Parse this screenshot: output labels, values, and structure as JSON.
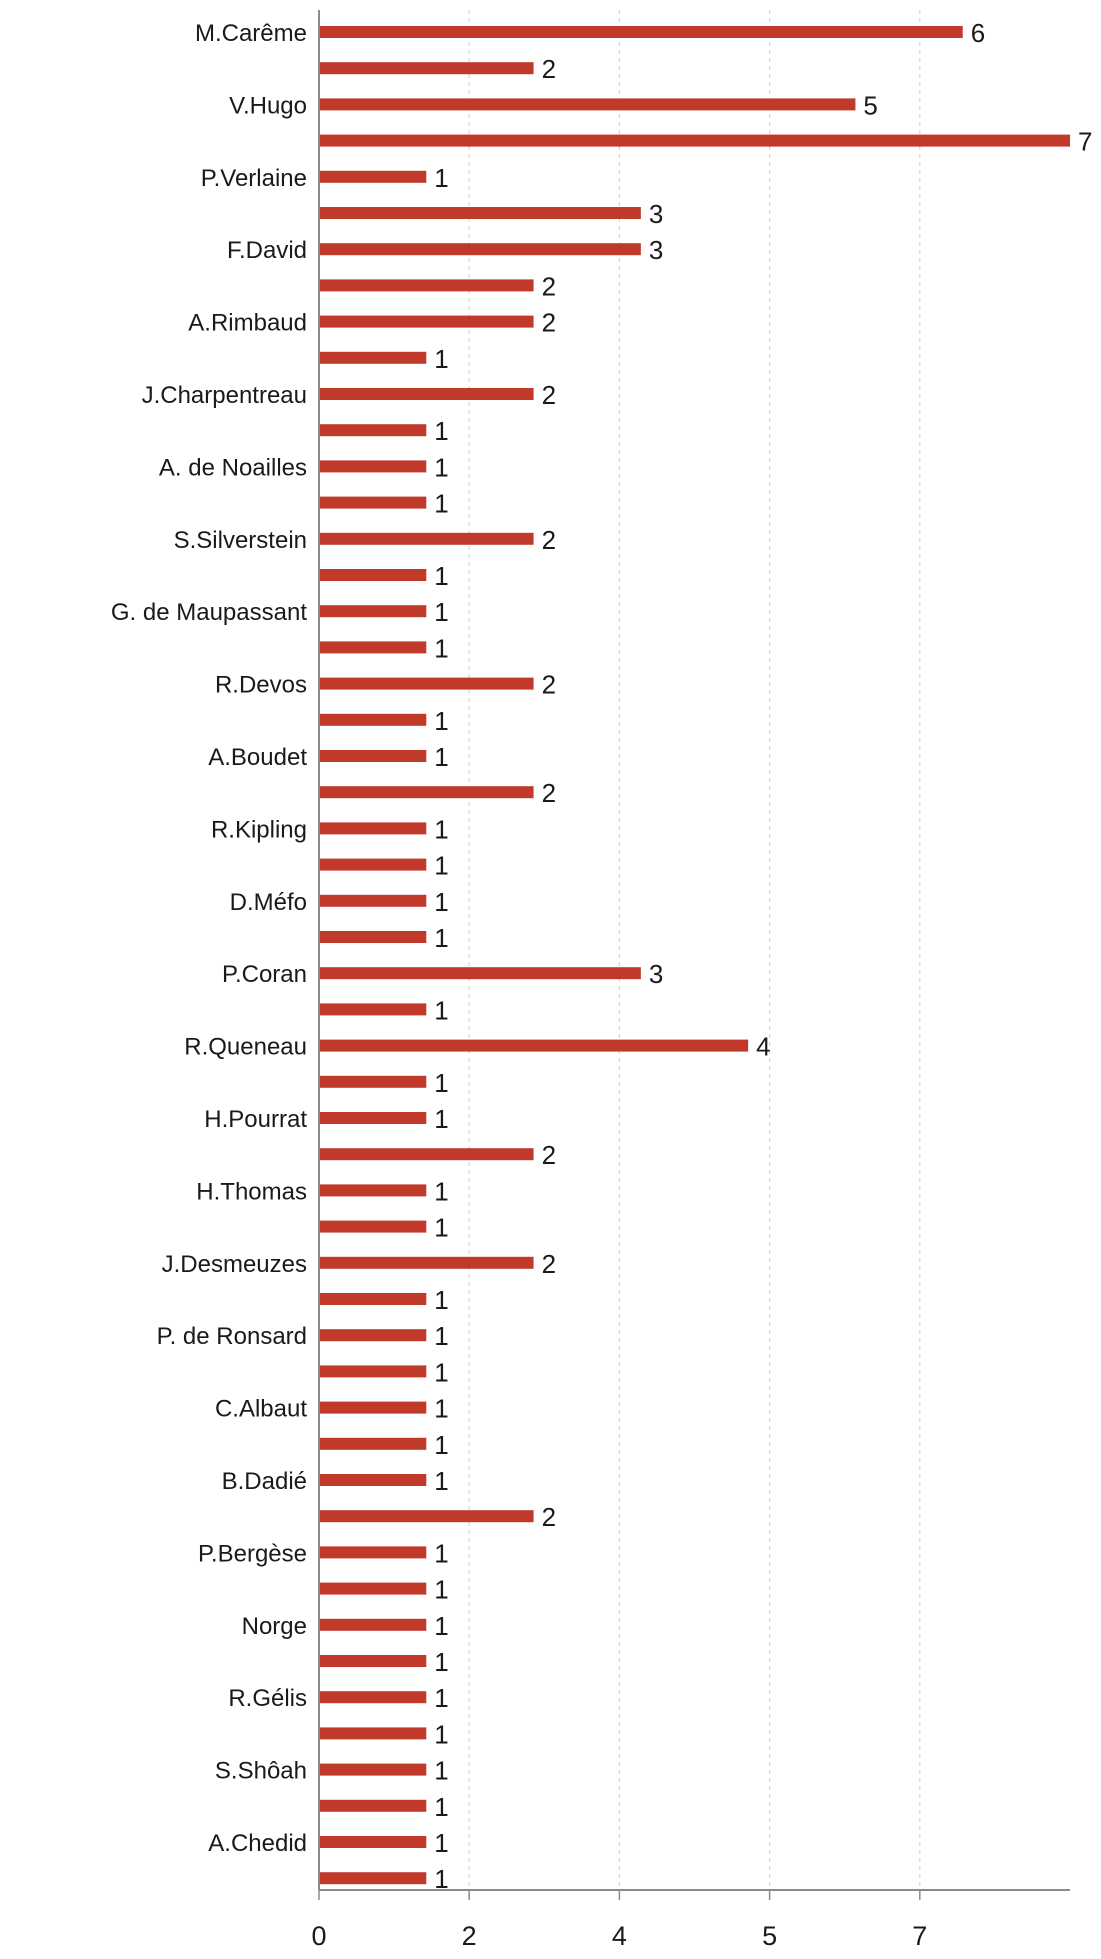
{
  "chart_data": {
    "type": "bar",
    "orientation": "horizontal",
    "title": "",
    "xlabel": "",
    "ylabel": "",
    "xlim": [
      0,
      7
    ],
    "x_ticks": [
      {
        "value": 0,
        "label": "0"
      },
      {
        "value": 1.4,
        "label": "2"
      },
      {
        "value": 2.8,
        "label": "4"
      },
      {
        "value": 4.2,
        "label": "5"
      },
      {
        "value": 5.6,
        "label": "7"
      }
    ],
    "grid": "vertical dashed",
    "legend": "none",
    "colors": {
      "bar": "#c0392b",
      "axis": "#8a8a8a",
      "grid": "#d0d0d0",
      "text": "#1a1a1a"
    },
    "categories": [
      "M.Carême",
      "",
      "V.Hugo",
      "",
      "P.Verlaine",
      "",
      "F.David",
      "",
      "A.Rimbaud",
      "",
      "J.Charpentreau",
      "",
      "A. de Noailles",
      "",
      "S.Silverstein",
      "",
      "G. de Maupassant",
      "",
      "R.Devos",
      "",
      "A.Boudet",
      "",
      "R.Kipling",
      "",
      "D.Méfo",
      "",
      "P.Coran",
      "",
      "R.Queneau",
      "",
      "H.Pourrat",
      "",
      "H.Thomas",
      "",
      "J.Desmeuzes",
      "",
      "P. de Ronsard",
      "",
      "C.Albaut",
      "",
      "B.Dadié",
      "",
      "P.Bergèse",
      "",
      "Norge",
      "",
      "R.Gélis",
      "",
      "S.Shôah",
      "",
      "A.Chedid",
      ""
    ],
    "values": [
      6,
      2,
      5,
      7,
      1,
      3,
      3,
      2,
      2,
      1,
      2,
      1,
      1,
      1,
      2,
      1,
      1,
      1,
      2,
      1,
      1,
      2,
      1,
      1,
      1,
      1,
      3,
      1,
      4,
      1,
      1,
      2,
      1,
      1,
      2,
      1,
      1,
      1,
      1,
      1,
      1,
      2,
      1,
      1,
      1,
      1,
      1,
      1,
      1,
      1,
      1,
      1
    ]
  }
}
